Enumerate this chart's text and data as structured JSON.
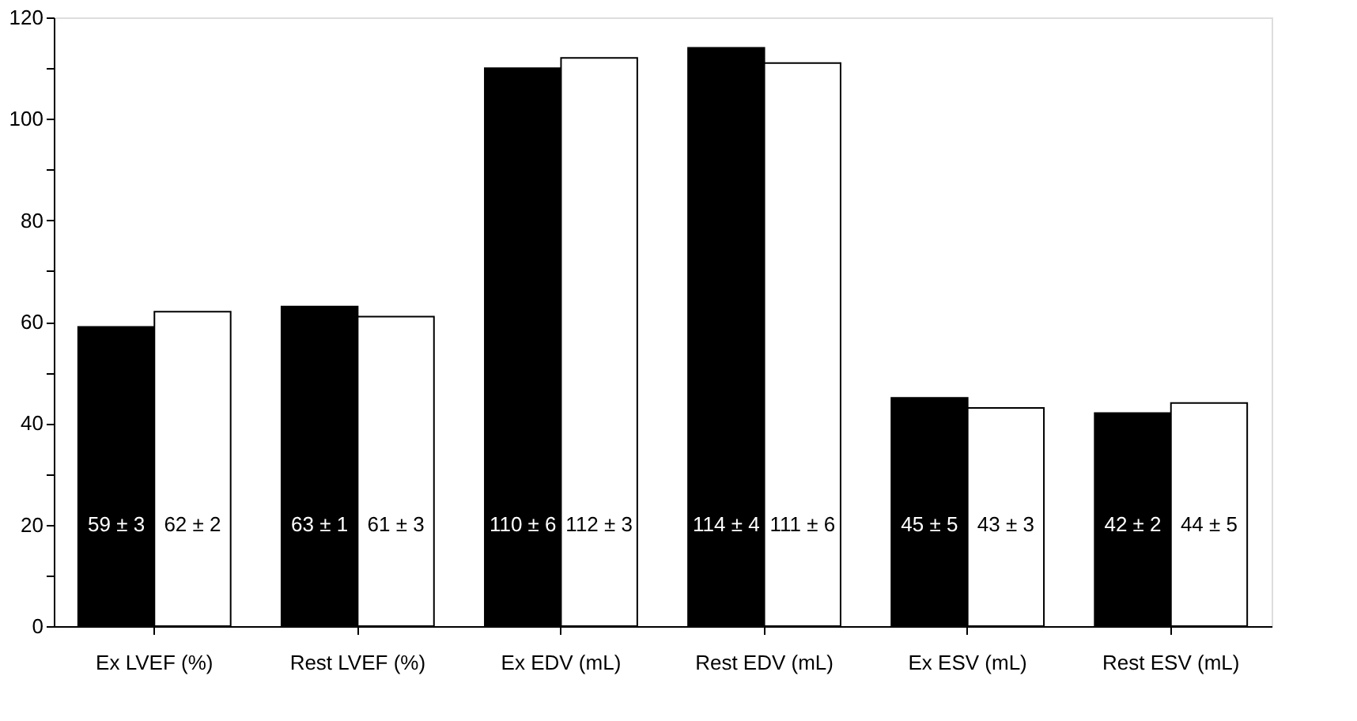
{
  "chart_data": {
    "type": "bar",
    "categories": [
      "Ex LVEF (%)",
      "Rest LVEF (%)",
      "Ex EDV (mL)",
      "Rest EDV (mL)",
      "Ex ESV (mL)",
      "Rest ESV (mL)"
    ],
    "series": [
      {
        "color": "#000000",
        "values": [
          59,
          63,
          110,
          114,
          45,
          42
        ],
        "value_labels": [
          "59 ± 3",
          "63 ± 1",
          "110 ± 6",
          "114 ± 4",
          "45 ± 5",
          "42 ± 2"
        ]
      },
      {
        "color": "#ffffff",
        "values": [
          62,
          61,
          112,
          111,
          43,
          44
        ],
        "value_labels": [
          "62 ± 2",
          "61 ± 3",
          "112 ± 3",
          "111 ± 6",
          "43 ± 3",
          "44 ± 5"
        ]
      }
    ],
    "ylim": [
      0,
      120
    ],
    "yticks": [
      0,
      {
        "value": 10,
        "label": null
      },
      20,
      {
        "value": 30,
        "label": null
      },
      40,
      {
        "value": 50,
        "label": null
      },
      60,
      {
        "value": 70,
        "label": null
      },
      80,
      {
        "value": 90,
        "label": null
      },
      100,
      {
        "value": 110,
        "label": null
      },
      120
    ],
    "grid": false
  }
}
